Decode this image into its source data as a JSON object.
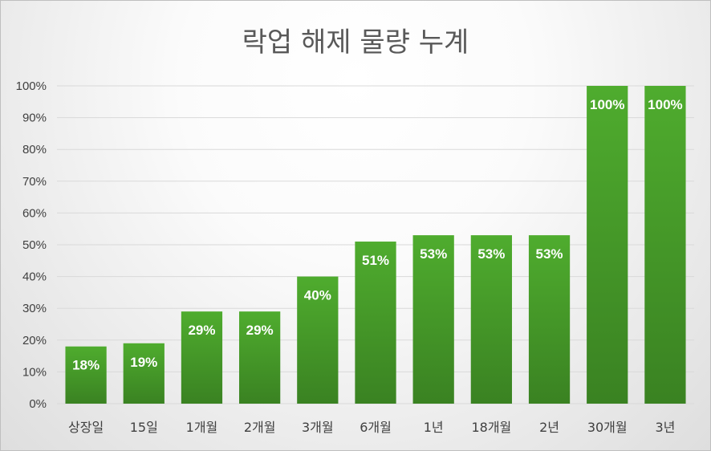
{
  "chart_data": {
    "type": "bar",
    "title": "락업 해제 물량 누계",
    "xlabel": "",
    "ylabel": "",
    "categories": [
      "상장일",
      "15일",
      "1개월",
      "2개월",
      "3개월",
      "6개월",
      "1년",
      "18개월",
      "2년",
      "30개월",
      "3년"
    ],
    "values": [
      18,
      19,
      29,
      29,
      40,
      51,
      53,
      53,
      53,
      100,
      100
    ],
    "data_labels": [
      "18%",
      "19%",
      "29%",
      "29%",
      "40%",
      "51%",
      "53%",
      "53%",
      "53%",
      "100%",
      "100%"
    ],
    "y_ticks": [
      "0%",
      "10%",
      "20%",
      "30%",
      "40%",
      "50%",
      "60%",
      "70%",
      "80%",
      "90%",
      "100%"
    ],
    "ylim": [
      0,
      100
    ],
    "grid": true,
    "legend": "none",
    "colors": {
      "bar_top": "#4fac2e",
      "bar_bottom": "#3a8222",
      "grid": "#d9d9d9",
      "text": "#404040",
      "title": "#595959"
    }
  }
}
